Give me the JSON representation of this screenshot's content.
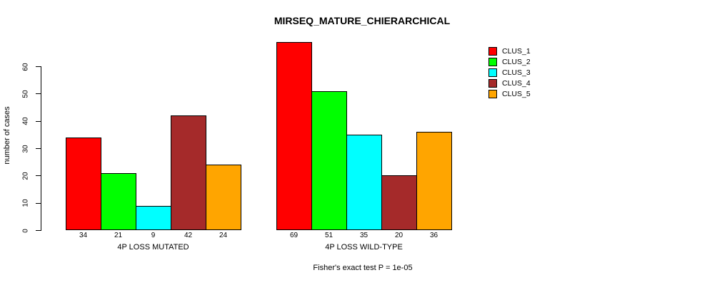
{
  "chart_data": {
    "type": "bar",
    "title": "MIRSEQ_MATURE_CHIERARCHICAL",
    "ylabel": "number of cases",
    "xlabel": "",
    "ylim": [
      0,
      60
    ],
    "yticks": [
      0,
      10,
      20,
      30,
      40,
      50,
      60
    ],
    "grid": false,
    "legend_position": "top-right",
    "bar_value_labels": true,
    "categories": [
      "4P LOSS MUTATED",
      "4P LOSS WILD-TYPE"
    ],
    "series": [
      {
        "name": "CLUS_1",
        "color": "#FF0000",
        "values": [
          34,
          69
        ]
      },
      {
        "name": "CLUS_2",
        "color": "#00FF00",
        "values": [
          21,
          51
        ]
      },
      {
        "name": "CLUS_3",
        "color": "#00FFFF",
        "values": [
          9,
          35
        ]
      },
      {
        "name": "CLUS_4",
        "color": "#A52A2A",
        "values": [
          42,
          20
        ]
      },
      {
        "name": "CLUS_5",
        "color": "#FFA500",
        "values": [
          24,
          36
        ]
      }
    ],
    "footnote": "Fisher's exact test P = 1e-05"
  }
}
